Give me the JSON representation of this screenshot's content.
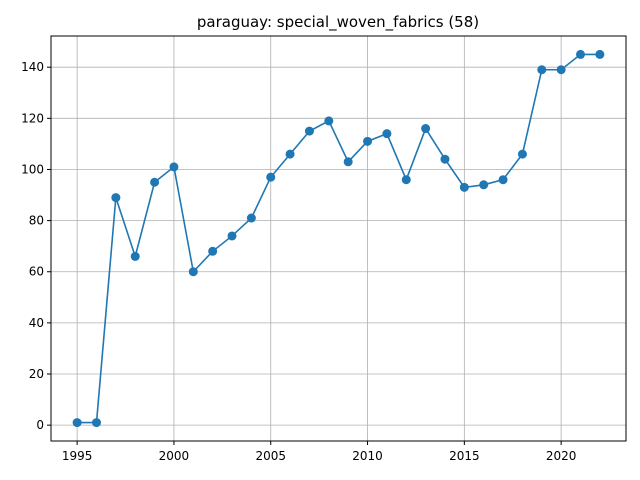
{
  "chart_data": {
    "type": "line",
    "title": "paraguay: special_woven_fabrics (58)",
    "xlabel": "",
    "ylabel": "",
    "grid": true,
    "xlim": [
      1993.65,
      2023.35
    ],
    "ylim": [
      -6.2,
      152.2
    ],
    "xticks": [
      1995,
      2000,
      2005,
      2010,
      2015,
      2020
    ],
    "yticks": [
      0,
      20,
      40,
      60,
      80,
      100,
      120,
      140
    ],
    "series": [
      {
        "color": "#1f77b4",
        "marker": "circle",
        "x": [
          1995,
          1996,
          1997,
          1998,
          1999,
          2000,
          2001,
          2002,
          2003,
          2004,
          2005,
          2006,
          2007,
          2008,
          2009,
          2010,
          2011,
          2012,
          2013,
          2014,
          2015,
          2016,
          2017,
          2018,
          2019,
          2020,
          2021,
          2022
        ],
        "y": [
          1,
          1,
          89,
          66,
          95,
          101,
          60,
          68,
          74,
          81,
          97,
          106,
          115,
          119,
          103,
          111,
          114,
          96,
          116,
          104,
          93,
          94,
          96,
          106,
          139,
          139,
          145,
          145
        ]
      }
    ]
  }
}
